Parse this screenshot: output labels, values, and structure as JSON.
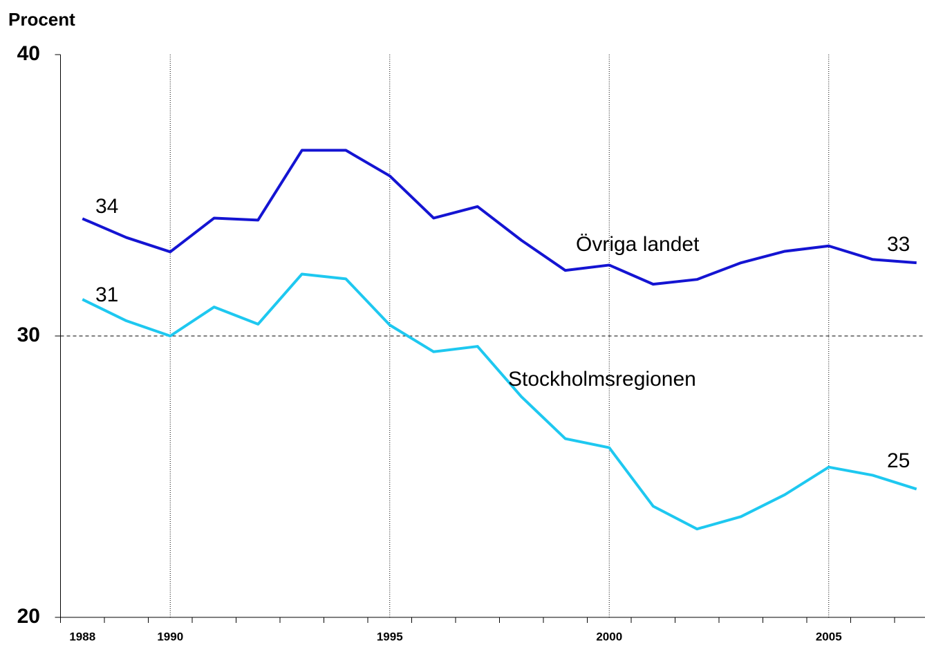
{
  "chart_data": {
    "type": "line",
    "y_label": "Procent",
    "categories": [
      "1988",
      null,
      "1990",
      null,
      null,
      null,
      null,
      "1995",
      null,
      null,
      null,
      null,
      "2000",
      null,
      null,
      null,
      null,
      "2005",
      null,
      null
    ],
    "series": [
      {
        "name": "Övriga landet",
        "color": "#1414d2",
        "values": [
          34.17,
          33.5,
          32.99,
          34.19,
          34.12,
          36.6,
          36.6,
          35.69,
          34.19,
          34.6,
          33.4,
          32.33,
          32.52,
          31.84,
          32.01,
          32.6,
          33.01,
          33.2,
          32.72,
          32.6
        ]
      },
      {
        "name": "Stockholmsregionen",
        "color": "#1ec8f0",
        "values": [
          31.3,
          30.54,
          30.0,
          31.03,
          30.42,
          32.2,
          32.03,
          30.39,
          29.44,
          29.63,
          27.84,
          26.35,
          26.03,
          23.95,
          23.14,
          23.58,
          24.36,
          25.34,
          25.05,
          24.56
        ]
      }
    ],
    "annotations": [
      "34",
      "31",
      "33",
      "25"
    ],
    "ylim": [
      20,
      40
    ],
    "yticks": [
      20,
      30,
      40
    ],
    "grid": true
  }
}
